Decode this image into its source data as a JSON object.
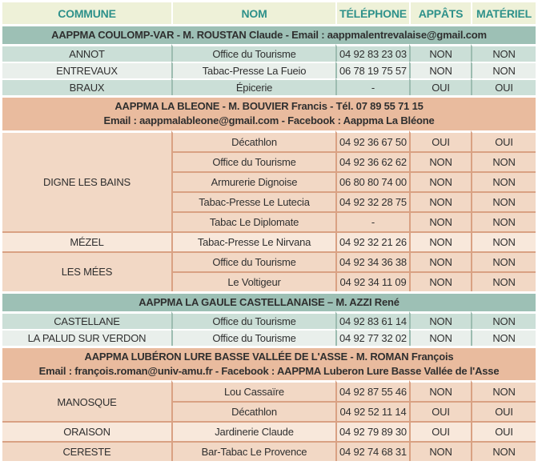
{
  "columns": [
    "COMMUNE",
    "NOM",
    "TÉLÉPHONE",
    "APPÂTS",
    "MATÉRIEL"
  ],
  "sections": [
    {
      "type": "teal",
      "header_lines": [
        "AAPPMA COULOMP-VAR - M. ROUSTAN Claude - Email : aappmalentrevalaise@gmail.com"
      ],
      "groups": [
        {
          "commune": "ANNOT",
          "shade": "a",
          "rows": [
            {
              "nom": "Office du Tourisme",
              "tel": "04 92 83 23 03",
              "appats": "NON",
              "materiel": "NON"
            }
          ]
        },
        {
          "commune": "ENTREVAUX",
          "shade": "b",
          "rows": [
            {
              "nom": "Tabac-Presse La Fueio",
              "tel": "06 78 19 75 57",
              "appats": "NON",
              "materiel": "NON"
            }
          ]
        },
        {
          "commune": "BRAUX",
          "shade": "a",
          "rows": [
            {
              "nom": "Épicerie",
              "tel": "-",
              "appats": "OUI",
              "materiel": "OUI"
            }
          ]
        }
      ]
    },
    {
      "type": "peach",
      "header_lines": [
        "AAPPMA LA BLEONE - M. BOUVIER Francis - Tél. 07 89 55 71 15",
        "Email : aappmalableone@gmail.com - Facebook : Aappma La Bléone"
      ],
      "groups": [
        {
          "commune": "DIGNE LES BAINS",
          "shade": "a",
          "rows": [
            {
              "nom": "Décathlon",
              "tel": "04 92 36 67 50",
              "appats": "OUI",
              "materiel": "OUI"
            },
            {
              "nom": "Office du Tourisme",
              "tel": "04 92 36 62 62",
              "appats": "NON",
              "materiel": "NON"
            },
            {
              "nom": "Armurerie Dignoise",
              "tel": "06 80 80 74 00",
              "appats": "NON",
              "materiel": "NON"
            },
            {
              "nom": "Tabac-Presse Le Lutecia",
              "tel": "04 92 32 28 75",
              "appats": "NON",
              "materiel": "NON"
            },
            {
              "nom": "Tabac Le Diplomate",
              "tel": "-",
              "appats": "NON",
              "materiel": "NON"
            }
          ]
        },
        {
          "commune": "MÉZEL",
          "shade": "b",
          "rows": [
            {
              "nom": "Tabac-Presse Le Nirvana",
              "tel": "04 92 32 21 26",
              "appats": "NON",
              "materiel": "NON"
            }
          ]
        },
        {
          "commune": "LES MÉES",
          "shade": "a",
          "rows": [
            {
              "nom": "Office du Tourisme",
              "tel": "04 92 34 36 38",
              "appats": "NON",
              "materiel": "NON"
            },
            {
              "nom": "Le Voltigeur",
              "tel": "04 92 34 11 09",
              "appats": "NON",
              "materiel": "NON"
            }
          ]
        }
      ]
    },
    {
      "type": "teal",
      "header_lines": [
        "AAPPMA LA GAULE CASTELLANAISE – M. AZZI René"
      ],
      "groups": [
        {
          "commune": "CASTELLANE",
          "shade": "a",
          "rows": [
            {
              "nom": "Office du Tourisme",
              "tel": "04 92 83 61 14",
              "appats": "NON",
              "materiel": "NON"
            }
          ]
        },
        {
          "commune": "LA PALUD SUR VERDON",
          "shade": "b",
          "rows": [
            {
              "nom": "Office du Tourisme",
              "tel": "04 92 77 32 02",
              "appats": "NON",
              "materiel": "NON"
            }
          ]
        }
      ]
    },
    {
      "type": "peach",
      "header_lines": [
        "AAPPMA LUBÉRON LURE BASSE VALLÉE DE L'ASSE  - M. ROMAN François",
        "Email : françois.roman@univ-amu.fr - Facebook : AAPPMA Luberon Lure Basse Vallée de l'Asse"
      ],
      "groups": [
        {
          "commune": "MANOSQUE",
          "shade": "a",
          "rows": [
            {
              "nom": "Lou Cassaïre",
              "tel": "04 92 87 55 46",
              "appats": "NON",
              "materiel": "NON"
            },
            {
              "nom": "Décathlon",
              "tel": "04 92 52 11 14",
              "appats": "OUI",
              "materiel": "OUI"
            }
          ]
        },
        {
          "commune": "ORAISON",
          "shade": "b",
          "rows": [
            {
              "nom": "Jardinerie Claude",
              "tel": "04 92 79 89 30",
              "appats": "OUI",
              "materiel": "OUI"
            }
          ]
        },
        {
          "commune": "CERESTE",
          "shade": "a",
          "rows": [
            {
              "nom": "Bar-Tabac Le Provence",
              "tel": "04 92 74 68 31",
              "appats": "NON",
              "materiel": "NON"
            }
          ]
        }
      ]
    }
  ],
  "colors": {
    "background": "#ffffff",
    "text": "#2f2f2f",
    "header_bg": "#eef1d8",
    "header_text": "#2e918a",
    "teal_section_bg": "#9dc0b5",
    "teal_row_a": "#cbdfd7",
    "teal_row_b": "#e9efeb",
    "teal_border": "#9cbcb0",
    "peach_section_bg": "#e9bb9e",
    "peach_row_a": "#f2d8c5",
    "peach_row_b": "#f8e8db",
    "peach_border": "#d9a183"
  }
}
